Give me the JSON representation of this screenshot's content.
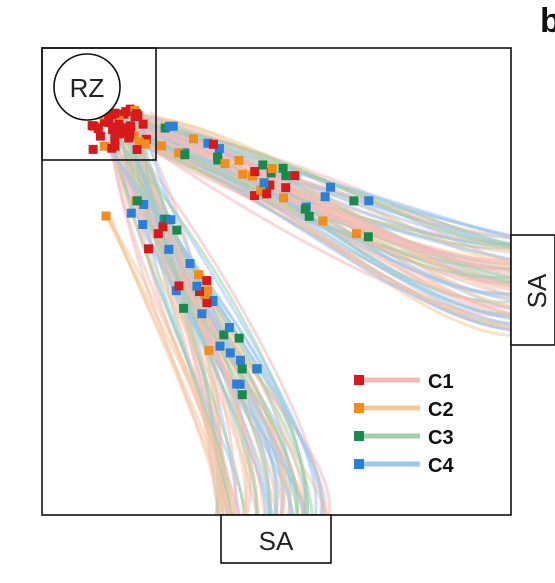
{
  "panel_letter": "b",
  "nodes": {
    "root_zone": "RZ",
    "sa_right": "SA",
    "sa_bottom": "SA"
  },
  "legend": [
    {
      "label": "C1",
      "color": "#d7191c",
      "line": "#f2b9b9"
    },
    {
      "label": "C2",
      "color": "#f28c1a",
      "line": "#f6c99a"
    },
    {
      "label": "C3",
      "color": "#1a8a4a",
      "line": "#9fd0a8"
    },
    {
      "label": "C4",
      "color": "#2a7fd8",
      "line": "#9cc6ee"
    }
  ]
}
